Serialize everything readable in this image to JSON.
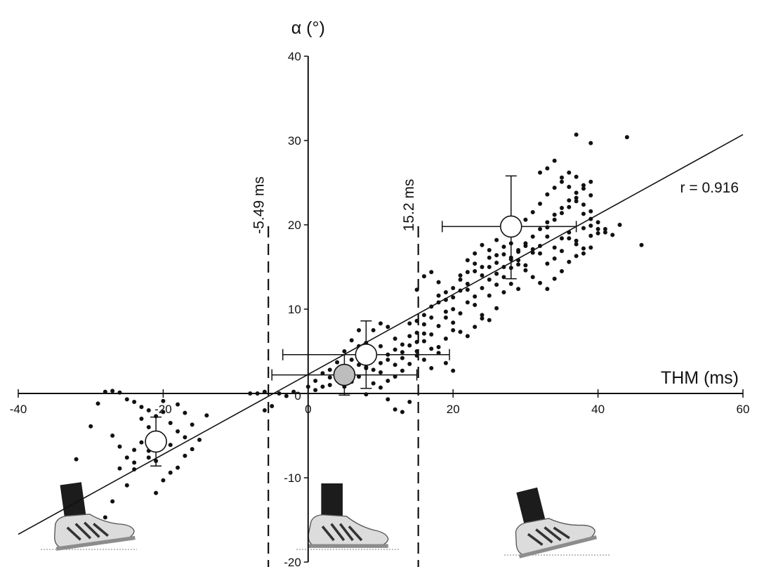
{
  "chart_data": {
    "type": "scatter",
    "title": "",
    "xlabel": "THM (ms)",
    "ylabel": "α (°)",
    "xlim": [
      -40,
      60
    ],
    "ylim": [
      -20,
      40
    ],
    "x_ticks": [
      -40,
      -20,
      0,
      20,
      40,
      60
    ],
    "y_ticks": [
      -20,
      -10,
      0,
      10,
      20,
      30,
      40
    ],
    "x_tick_labels": [
      "-40",
      "-20",
      "0",
      "20",
      "40",
      "60"
    ],
    "y_tick_labels": [
      "-20",
      "-10",
      "0",
      "10",
      "20",
      "30",
      "40"
    ],
    "grid": false,
    "regression": {
      "x": [
        -40,
        60
      ],
      "y": [
        -16.7,
        30.7
      ],
      "label": "r = 0.916"
    },
    "thresholds": [
      {
        "x": -5.49,
        "label": "-5.49 ms"
      },
      {
        "x": 15.2,
        "label": "15.2 ms"
      }
    ],
    "group_means": [
      {
        "x": -21,
        "y": -5.7,
        "xerr_low": 0,
        "xerr_high": 0,
        "yerr_low": 2.9,
        "yerr_high": 2.9,
        "fill": "#ffffff"
      },
      {
        "x": 5,
        "y": 2.2,
        "xerr_low": 10,
        "xerr_high": 10,
        "yerr_low": 2.4,
        "yerr_high": 2.4,
        "fill": "#bdbdbd"
      },
      {
        "x": 8,
        "y": 4.6,
        "xerr_low": 11.5,
        "xerr_high": 11.5,
        "yerr_low": 4,
        "yerr_high": 4,
        "fill": "#ffffff"
      },
      {
        "x": 28,
        "y": 19.8,
        "xerr_low": 9.5,
        "xerr_high": 9,
        "yerr_low": 6.2,
        "yerr_high": 6,
        "fill": "#ffffff"
      }
    ],
    "points": [
      [
        -32,
        -7.8
      ],
      [
        -30,
        -3.9
      ],
      [
        -29,
        -1.2
      ],
      [
        -28,
        0.2
      ],
      [
        -27,
        0.3
      ],
      [
        -26,
        0.1
      ],
      [
        -25,
        -0.7
      ],
      [
        -24,
        -1.0
      ],
      [
        -23,
        -1.6
      ],
      [
        -22,
        -2.0
      ],
      [
        -21,
        -2.7
      ],
      [
        -20,
        -2.2
      ],
      [
        -19,
        -3.5
      ],
      [
        -18,
        -4.5
      ],
      [
        -17,
        -5.2
      ],
      [
        -17,
        -7.4
      ],
      [
        -18,
        -8.8
      ],
      [
        -19,
        -9.4
      ],
      [
        -20,
        -10.3
      ],
      [
        -21,
        -8.0
      ],
      [
        -22,
        -6.8
      ],
      [
        -22,
        -4.0
      ],
      [
        -23,
        -3.0
      ],
      [
        -23,
        -5.8
      ],
      [
        -24,
        -8.2
      ],
      [
        -24,
        -9.0
      ],
      [
        -25,
        -7.6
      ],
      [
        -26,
        -8.9
      ],
      [
        -26,
        -6.3
      ],
      [
        -27,
        -5.0
      ],
      [
        -24,
        -6.7
      ],
      [
        -22,
        -7.6
      ],
      [
        -25,
        -10.9
      ],
      [
        -21,
        -11.8
      ],
      [
        -19,
        -6.1
      ],
      [
        -16,
        -6.6
      ],
      [
        -15,
        -5.5
      ],
      [
        -16,
        -3.7
      ],
      [
        -17,
        -2.3
      ],
      [
        -18,
        -1.3
      ],
      [
        -20,
        -0.9
      ],
      [
        -14,
        -2.6
      ],
      [
        -28,
        -14.7
      ],
      [
        -27,
        -12.8
      ],
      [
        -8,
        0
      ],
      [
        -7,
        0
      ],
      [
        -6,
        0.2
      ],
      [
        -6,
        -2
      ],
      [
        -5,
        -1.5
      ],
      [
        -4,
        0
      ],
      [
        -3,
        -0.3
      ],
      [
        -2,
        0.2
      ],
      [
        0,
        0.8
      ],
      [
        1,
        1.5
      ],
      [
        2,
        0.8
      ],
      [
        3,
        1.9
      ],
      [
        4,
        3.7
      ],
      [
        5,
        3.2
      ],
      [
        6,
        2.3
      ],
      [
        7,
        2.0
      ],
      [
        8,
        3.1
      ],
      [
        9,
        2.8
      ],
      [
        10,
        3.6
      ],
      [
        11,
        4.0
      ],
      [
        12,
        3.4
      ],
      [
        13,
        4.2
      ],
      [
        14,
        5.7
      ],
      [
        15,
        6.1
      ],
      [
        16,
        7.1
      ],
      [
        17,
        5.3
      ],
      [
        18,
        4.8
      ],
      [
        19,
        3.6
      ],
      [
        20,
        2.7
      ],
      [
        6,
        6.3
      ],
      [
        7,
        5.6
      ],
      [
        9,
        7.5
      ],
      [
        10,
        8.3
      ],
      [
        11,
        7.9
      ],
      [
        12,
        6.5
      ],
      [
        13,
        4.9
      ],
      [
        14,
        8.3
      ],
      [
        15,
        12.3
      ],
      [
        16,
        13.9
      ],
      [
        17,
        14.4
      ],
      [
        18,
        13.2
      ],
      [
        19,
        11.1
      ],
      [
        20,
        12.5
      ],
      [
        21,
        13.5
      ],
      [
        22,
        12.3
      ],
      [
        23,
        10.5
      ],
      [
        24,
        9.3
      ],
      [
        25,
        8.7
      ],
      [
        26,
        10.1
      ],
      [
        11,
        -0.7
      ],
      [
        12,
        -1.9
      ],
      [
        13,
        -2.2
      ],
      [
        14,
        -1.0
      ],
      [
        10,
        0.7
      ],
      [
        9,
        1.2
      ],
      [
        8,
        -0.1
      ],
      [
        15,
        8.6
      ],
      [
        16,
        9.3
      ],
      [
        17,
        10.3
      ],
      [
        18,
        10.8
      ],
      [
        19,
        9.7
      ],
      [
        20,
        8.4
      ],
      [
        21,
        7.3
      ],
      [
        22,
        6.8
      ],
      [
        23,
        7.9
      ],
      [
        24,
        8.9
      ],
      [
        25,
        11.6
      ],
      [
        26,
        12.9
      ],
      [
        27,
        13.8
      ],
      [
        28,
        14.9
      ],
      [
        29,
        15.8
      ],
      [
        30,
        15.2
      ],
      [
        31,
        16.7
      ],
      [
        32,
        17.5
      ],
      [
        33,
        18.6
      ],
      [
        34,
        17.3
      ],
      [
        35,
        18.4
      ],
      [
        36,
        19.1
      ],
      [
        37,
        18.1
      ],
      [
        38,
        19.6
      ],
      [
        39,
        20.7
      ],
      [
        40,
        19.5
      ],
      [
        22,
        15.8
      ],
      [
        23,
        16.6
      ],
      [
        24,
        17.6
      ],
      [
        25,
        16.1
      ],
      [
        26,
        18.2
      ],
      [
        27,
        17.4
      ],
      [
        28,
        16.1
      ],
      [
        29,
        15.3
      ],
      [
        30,
        14.6
      ],
      [
        31,
        13.8
      ],
      [
        32,
        13.1
      ],
      [
        33,
        12.4
      ],
      [
        34,
        13.6
      ],
      [
        35,
        14.5
      ],
      [
        36,
        15.6
      ],
      [
        37,
        16.3
      ],
      [
        38,
        17.2
      ],
      [
        39,
        18.7
      ],
      [
        30,
        20.6
      ],
      [
        31,
        21.5
      ],
      [
        32,
        22.5
      ],
      [
        33,
        23.6
      ],
      [
        34,
        24.4
      ],
      [
        35,
        25.1
      ],
      [
        36,
        26.2
      ],
      [
        37,
        25.7
      ],
      [
        38,
        24.3
      ],
      [
        39,
        23.5
      ],
      [
        32,
        26.2
      ],
      [
        33,
        26.7
      ],
      [
        34,
        27.6
      ],
      [
        35,
        25.6
      ],
      [
        36,
        24.5
      ],
      [
        37,
        23.2
      ],
      [
        38,
        22.4
      ],
      [
        39,
        21.6
      ],
      [
        40,
        20.3
      ],
      [
        33,
        19.7
      ],
      [
        34,
        20.6
      ],
      [
        35,
        21.4
      ],
      [
        36,
        22.1
      ],
      [
        37,
        22.8
      ],
      [
        38,
        21.3
      ],
      [
        39,
        19.9
      ],
      [
        41,
        19.1
      ],
      [
        31,
        17.1
      ],
      [
        32,
        16.6
      ],
      [
        33,
        15.4
      ],
      [
        34,
        16.0
      ],
      [
        35,
        16.9
      ],
      [
        36,
        18.4
      ],
      [
        37,
        17.7
      ],
      [
        38,
        16.6
      ],
      [
        39,
        17.3
      ],
      [
        37,
        30.7
      ],
      [
        39,
        29.7
      ],
      [
        43,
        20.0
      ],
      [
        44,
        30.4
      ],
      [
        46,
        17.6
      ],
      [
        21,
        14.0
      ],
      [
        22,
        13.0
      ],
      [
        23,
        14.5
      ],
      [
        24,
        14.0
      ],
      [
        25,
        15.0
      ],
      [
        26,
        15.5
      ],
      [
        27,
        16.5
      ],
      [
        28,
        17.8
      ],
      [
        29,
        17.0
      ],
      [
        30,
        17.5
      ],
      [
        27,
        12.0
      ],
      [
        28,
        13.0
      ],
      [
        29,
        12.4
      ],
      [
        20,
        10.0
      ],
      [
        19,
        9.0
      ],
      [
        18,
        8.0
      ],
      [
        17,
        7.0
      ],
      [
        16,
        6.2
      ],
      [
        15,
        4.5
      ],
      [
        14,
        3.5
      ],
      [
        13,
        2.7
      ],
      [
        12,
        2.0
      ],
      [
        11,
        1.5
      ],
      [
        10,
        2.5
      ],
      [
        9,
        5.0
      ],
      [
        8,
        6.0
      ],
      [
        7,
        7.5
      ],
      [
        6,
        4.0
      ],
      [
        5,
        5.0
      ],
      [
        4,
        2.5
      ],
      [
        3,
        1.0
      ],
      [
        2,
        2.4
      ],
      [
        1,
        0.4
      ],
      [
        15,
        5.0
      ],
      [
        16,
        4.0
      ],
      [
        17,
        3.0
      ],
      [
        18,
        5.5
      ],
      [
        19,
        6.5
      ],
      [
        20,
        7.5
      ],
      [
        21,
        9.5
      ],
      [
        22,
        10.8
      ],
      [
        23,
        11.5
      ],
      [
        24,
        12.5
      ],
      [
        25,
        13.5
      ],
      [
        26,
        14.2
      ],
      [
        27,
        15.0
      ],
      [
        28,
        15.9
      ],
      [
        29,
        16.8
      ],
      [
        30,
        17.8
      ],
      [
        31,
        18.6
      ],
      [
        32,
        19.5
      ],
      [
        33,
        20.3
      ],
      [
        34,
        21.2
      ],
      [
        35,
        22.0
      ],
      [
        36,
        22.9
      ],
      [
        37,
        23.8
      ],
      [
        38,
        24.7
      ],
      [
        39,
        25.1
      ],
      [
        40,
        19.0
      ],
      [
        41,
        19.5
      ],
      [
        42,
        18.8
      ],
      [
        25,
        17.0
      ],
      [
        26,
        16.4
      ],
      [
        24,
        15.0
      ],
      [
        23,
        15.4
      ],
      [
        22,
        14.4
      ],
      [
        21,
        12.2
      ],
      [
        20,
        11.4
      ],
      [
        19,
        12.0
      ],
      [
        18,
        11.6
      ],
      [
        17,
        9.0
      ],
      [
        16,
        8.2
      ],
      [
        15,
        7.2
      ],
      [
        14,
        6.8
      ],
      [
        13,
        5.8
      ],
      [
        12,
        5.2
      ],
      [
        11,
        4.6
      ],
      [
        10,
        5.6
      ],
      [
        9,
        4.1
      ],
      [
        8,
        3.0
      ],
      [
        7,
        3.4
      ],
      [
        6,
        1.4
      ],
      [
        5,
        0.8
      ],
      [
        4,
        1.6
      ],
      [
        3,
        2.8
      ]
    ]
  }
}
